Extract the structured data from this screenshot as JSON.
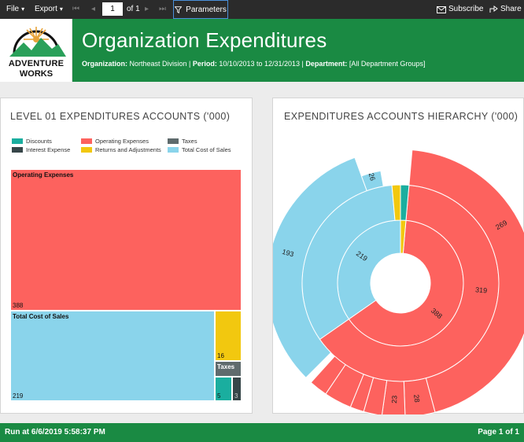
{
  "toolbar": {
    "file_label": "File",
    "export_label": "Export",
    "page_number": "1",
    "page_of": "of 1",
    "parameters_label": "Parameters",
    "subscribe_label": "Subscribe",
    "share_label": "Share"
  },
  "logo": {
    "line1": "Adventure",
    "line2": "Works"
  },
  "header": {
    "title": "Organization Expenditures",
    "org_label": "Organization:",
    "org_value": "Northeast Division",
    "period_label": "Period:",
    "period_value": "10/10/2013 to 12/31/2013",
    "dept_label": "Department:",
    "dept_value": "[All Department Groups]"
  },
  "left_panel": {
    "title": "LEVEL 01 EXPENDITURES ACCOUNTS ('000)",
    "legend": [
      {
        "name": "Discounts",
        "color": "#1aae9f"
      },
      {
        "name": "Operating Expenses",
        "color": "#fd625e"
      },
      {
        "name": "Taxes",
        "color": "#5f6b6d"
      },
      {
        "name": "Interest Expense",
        "color": "#374649"
      },
      {
        "name": "Returns and Adjustments",
        "color": "#f2c80f"
      },
      {
        "name": "Total Cost of Sales",
        "color": "#8ad4eb"
      }
    ]
  },
  "right_panel": {
    "title": "EXPENDITURES ACCOUNTS HIERARCHY ('000)"
  },
  "chart_data": [
    {
      "type": "treemap",
      "title": "LEVEL 01 EXPENDITURES ACCOUNTS ('000)",
      "items": [
        {
          "name": "Operating Expenses",
          "value": 388,
          "color": "#fd625e",
          "label": "Operating Expenses",
          "value_label": "388"
        },
        {
          "name": "Total Cost of Sales",
          "value": 219,
          "color": "#8ad4eb",
          "label": "Total Cost of Sales",
          "value_label": "219"
        },
        {
          "name": "Returns and Adjustments",
          "value": 16,
          "color": "#f2c80f",
          "label": "",
          "value_label": "16"
        },
        {
          "name": "Taxes",
          "value": 8,
          "color": "#5f6b6d",
          "label": "Taxes",
          "value_label": ""
        },
        {
          "name": "Discounts",
          "value": 5,
          "color": "#1aae9f",
          "label": "",
          "value_label": "5"
        },
        {
          "name": "Interest Expense",
          "value": 3,
          "color": "#374649",
          "label": "",
          "value_label": "3"
        }
      ]
    },
    {
      "type": "sunburst",
      "title": "EXPENDITURES ACCOUNTS HIERARCHY ('000)",
      "inner_ring": [
        {
          "name": "Operating Expenses",
          "value": 388,
          "label": "388"
        },
        {
          "name": "Total Cost of Sales",
          "value": 219,
          "label": "219"
        }
      ],
      "middle_ring_labels": [
        "319",
        "26"
      ],
      "outer_ring_labels": [
        "269",
        "193",
        "28",
        "23"
      ]
    }
  ],
  "footer": {
    "run_text": "Run at 6/6/2019 5:58:37 PM",
    "page_text": "Page 1 of 1"
  }
}
